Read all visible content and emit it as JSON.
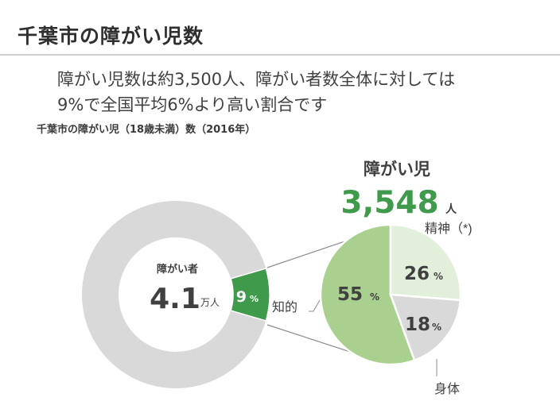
{
  "header": {
    "title": "千葉市の障がい児数"
  },
  "summary": {
    "line1": "障がい児数は約3,500人、障がい者数全体に対しては",
    "line2": "9%で全国平均6%より高い割合です"
  },
  "caption": "千葉市の障がい児（18歳未満）数（2016年）",
  "colors": {
    "donut_gray": "#d9d9d9",
    "donut_green": "#3f9a4b",
    "intellectual": "#a9d08e",
    "mental": "#e2efda",
    "physical": "#d9d9d9",
    "accent_text": "#3f9a4b",
    "connector": "#8c8c8c"
  },
  "chart_data": [
    {
      "type": "pie",
      "center_label": "障がい者",
      "center_value": "4.1",
      "center_unit": "万人",
      "slices": [
        {
          "label": "障がい児",
          "value": 9,
          "display": "9",
          "unit": "%"
        },
        {
          "label": "",
          "value": 91
        }
      ]
    },
    {
      "type": "pie",
      "title": "障がい児",
      "total_value": "3,548",
      "total_unit": "人",
      "slices": [
        {
          "label": "知的",
          "value": 55,
          "display": "55",
          "unit": "%"
        },
        {
          "label": "精神（*)",
          "value": 26,
          "display": "26",
          "unit": "%"
        },
        {
          "label": "身体",
          "value": 18,
          "display": "18",
          "unit": "%"
        }
      ]
    }
  ]
}
